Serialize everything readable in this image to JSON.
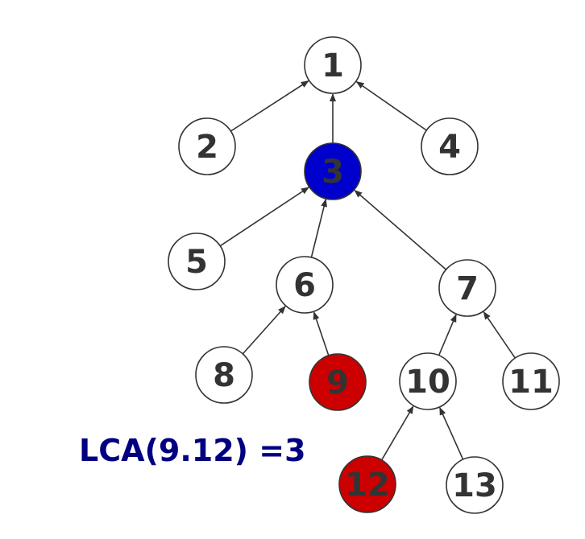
{
  "diagram": {
    "caption": "LCA(9.12) =3",
    "colors": {
      "default_fill": "#ffffff",
      "stroke": "#333333",
      "lca_fill": "#0000cc",
      "query_fill": "#cc0000",
      "caption": "#000080"
    },
    "nodes": [
      {
        "id": "1",
        "label": "1",
        "state": "default"
      },
      {
        "id": "2",
        "label": "2",
        "state": "default"
      },
      {
        "id": "3",
        "label": "3",
        "state": "lca"
      },
      {
        "id": "4",
        "label": "4",
        "state": "default"
      },
      {
        "id": "5",
        "label": "5",
        "state": "default"
      },
      {
        "id": "6",
        "label": "6",
        "state": "default"
      },
      {
        "id": "7",
        "label": "7",
        "state": "default"
      },
      {
        "id": "8",
        "label": "8",
        "state": "default"
      },
      {
        "id": "9",
        "label": "9",
        "state": "query"
      },
      {
        "id": "10",
        "label": "10",
        "state": "default"
      },
      {
        "id": "11",
        "label": "11",
        "state": "default"
      },
      {
        "id": "12",
        "label": "12",
        "state": "query"
      },
      {
        "id": "13",
        "label": "13",
        "state": "default"
      }
    ],
    "edges": [
      {
        "from": "2",
        "to": "1"
      },
      {
        "from": "3",
        "to": "1"
      },
      {
        "from": "4",
        "to": "1"
      },
      {
        "from": "5",
        "to": "3"
      },
      {
        "from": "6",
        "to": "3"
      },
      {
        "from": "7",
        "to": "3"
      },
      {
        "from": "8",
        "to": "6"
      },
      {
        "from": "9",
        "to": "6"
      },
      {
        "from": "10",
        "to": "7"
      },
      {
        "from": "11",
        "to": "7"
      },
      {
        "from": "12",
        "to": "10"
      },
      {
        "from": "13",
        "to": "10"
      }
    ]
  }
}
